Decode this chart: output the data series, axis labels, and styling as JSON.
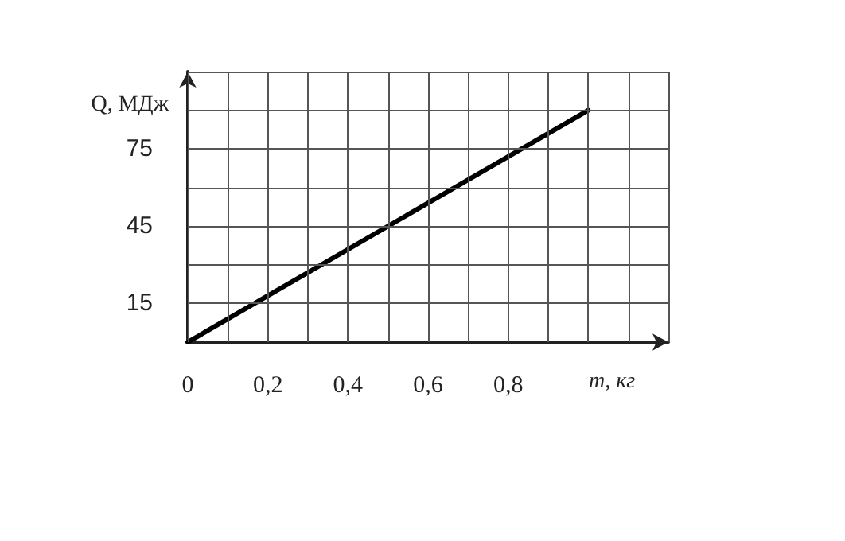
{
  "chart_data": {
    "type": "line",
    "xlabel": "m, кг",
    "ylabel": "Q, МДж",
    "x": [
      0,
      1
    ],
    "series": [
      {
        "color": "#000000",
        "values": [
          0,
          90
        ]
      }
    ],
    "xlim": [
      0,
      1.2
    ],
    "xticks": [
      {
        "value": 0,
        "label": "0"
      },
      {
        "value": 0.1,
        "label": null
      },
      {
        "value": 0.2,
        "label": "0,2"
      },
      {
        "value": 0.3,
        "label": null
      },
      {
        "value": 0.4,
        "label": "0,4"
      },
      {
        "value": 0.5,
        "label": null
      },
      {
        "value": 0.6,
        "label": "0,6"
      },
      {
        "value": 0.7,
        "label": null
      },
      {
        "value": 0.8,
        "label": "0,8"
      },
      {
        "value": 0.9,
        "label": null
      },
      {
        "value": 1,
        "label": null
      },
      {
        "value": 1.1,
        "label": null
      },
      {
        "value": 1.2,
        "label": null
      }
    ],
    "ylim": [
      0,
      105
    ],
    "yticks": [
      15,
      {
        "value": 30,
        "label": null
      },
      45,
      {
        "value": 60,
        "label": null
      },
      75,
      {
        "value": 90,
        "label": null
      },
      {
        "value": 105,
        "label": null
      }
    ],
    "grid": true,
    "marker": "none",
    "line_style": "solid"
  }
}
